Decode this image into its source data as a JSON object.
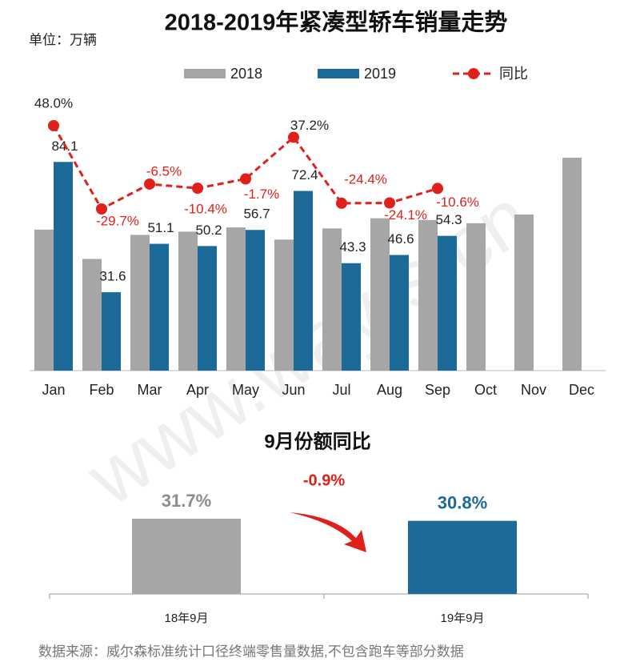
{
  "chart_data": [
    {
      "type": "bar",
      "title": "2018-2019年紧凑型轿车销量走势",
      "unit_label": "单位：万辆",
      "categories": [
        "Jan",
        "Feb",
        "Mar",
        "Apr",
        "May",
        "Jun",
        "Jul",
        "Aug",
        "Sep",
        "Oct",
        "Nov",
        "Dec"
      ],
      "legend": "top",
      "series": [
        {
          "name": "2018",
          "color": "#a6a6a6",
          "values": [
            56.8,
            45.0,
            54.7,
            56.0,
            57.7,
            52.8,
            57.3,
            61.4,
            60.7,
            59.4,
            62.9,
            85.8
          ]
        },
        {
          "name": "2019",
          "color": "#1b6a99",
          "values": [
            84.1,
            31.6,
            51.1,
            50.2,
            56.7,
            72.4,
            43.3,
            46.6,
            54.3,
            null,
            null,
            null
          ]
        },
        {
          "name": "同比",
          "type": "line",
          "axis": "y2",
          "color": "#e0201b",
          "values": [
            48.0,
            -29.7,
            -6.5,
            -10.4,
            -1.7,
            37.2,
            -24.4,
            -24.1,
            -10.6,
            null,
            null,
            null
          ],
          "value_labels": [
            "48.0%",
            "-29.7%",
            "-6.5%",
            "-10.4%",
            "-1.7%",
            "37.2%",
            "-24.4%",
            "-24.1%",
            "-10.6%",
            null,
            null,
            null
          ]
        }
      ]
    },
    {
      "type": "bar",
      "title": "9月份额同比",
      "categories": [
        "18年9月",
        "19年9月"
      ],
      "values": [
        31.7,
        30.8
      ],
      "value_labels": [
        "31.7%",
        "30.8%"
      ],
      "colors": [
        "#a6a6a6",
        "#1b6a99"
      ],
      "annotation": "-0.9%"
    }
  ],
  "source": "数据来源：威尔森标准统计口径终端零售量数据,不包含跑车等部分数据",
  "watermark": "www.way-s.cn"
}
